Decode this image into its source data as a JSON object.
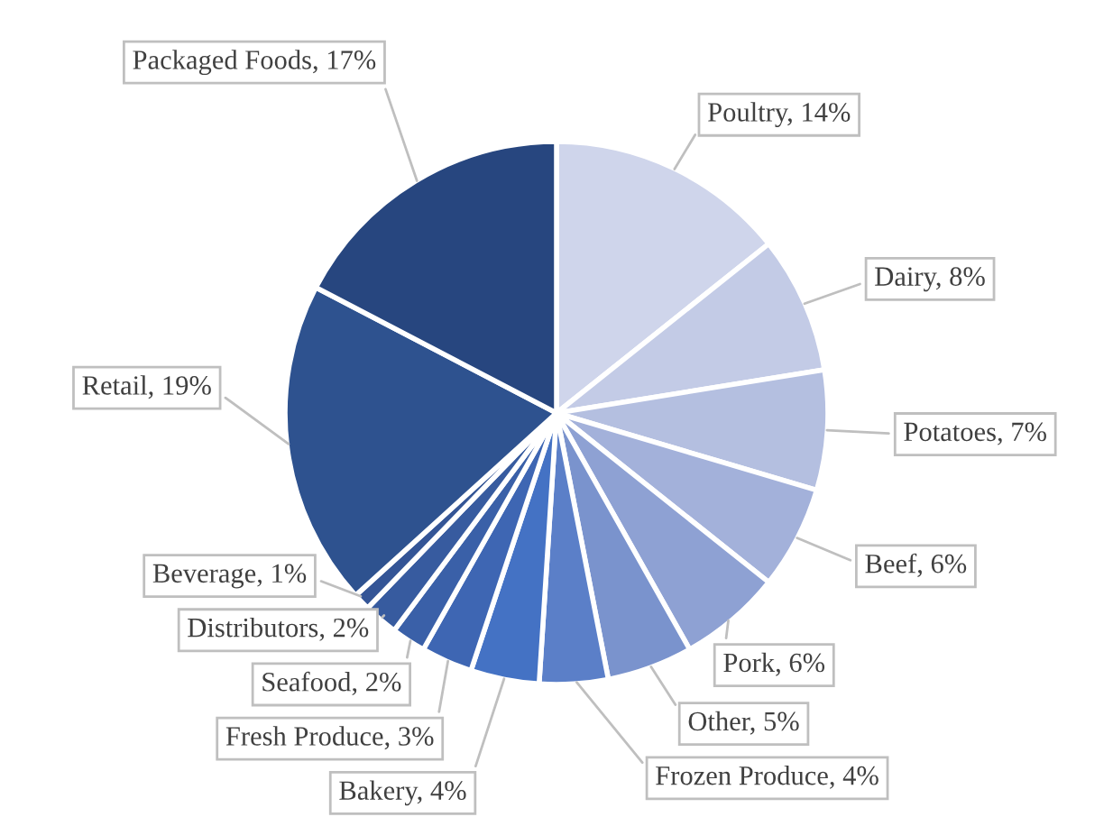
{
  "chart_data": {
    "type": "pie",
    "categories": [
      "Poultry",
      "Dairy",
      "Potatoes",
      "Beef",
      "Pork",
      "Other",
      "Frozen Produce",
      "Bakery",
      "Fresh Produce",
      "Seafood",
      "Distributors",
      "Beverage",
      "Retail",
      "Packaged Foods"
    ],
    "values": [
      14,
      8,
      7,
      6,
      6,
      5,
      4,
      4,
      3,
      2,
      2,
      1,
      19,
      17
    ],
    "value_labels": [
      "14%",
      "8%",
      "7%",
      "6%",
      "6%",
      "5%",
      "4%",
      "4%",
      "3%",
      "2%",
      "2%",
      "1%",
      "19%",
      "17%"
    ],
    "colors": [
      "#cfd5eb",
      "#c3cbe6",
      "#b4bfe0",
      "#a3b1da",
      "#8ea1d3",
      "#7a93cd",
      "#5b7fc8",
      "#4472c4",
      "#3e66b3",
      "#3a60a8",
      "#375b9f",
      "#345596",
      "#2e528f",
      "#27467f"
    ],
    "legend": false
  }
}
